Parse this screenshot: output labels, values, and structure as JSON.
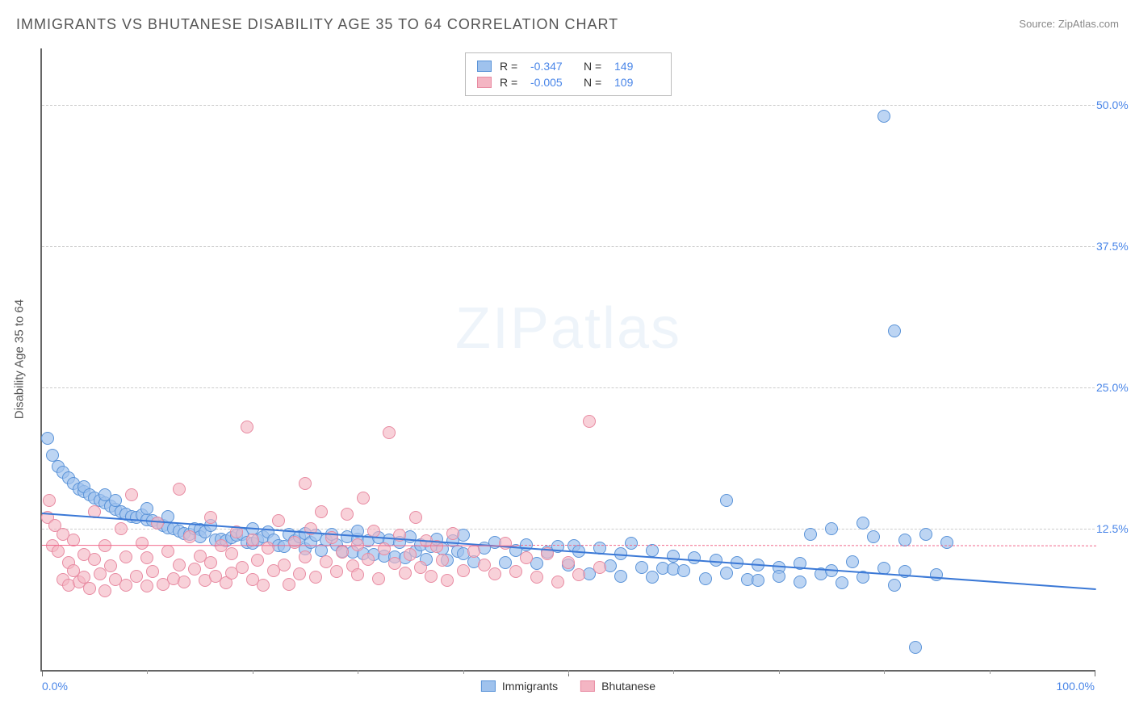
{
  "title": "IMMIGRANTS VS BHUTANESE DISABILITY AGE 35 TO 64 CORRELATION CHART",
  "source_label": "Source:",
  "source_value": "ZipAtlas.com",
  "watermark": "ZIPatlas",
  "chart": {
    "type": "scatter",
    "ylabel": "Disability Age 35 to 64",
    "xlim": [
      0,
      100
    ],
    "ylim": [
      0,
      55
    ],
    "y_ticks": [
      12.5,
      25.0,
      37.5,
      50.0
    ],
    "y_tick_labels": [
      "12.5%",
      "25.0%",
      "37.5%",
      "50.0%"
    ],
    "x_tick_left": "0.0%",
    "x_tick_right": "100.0%",
    "x_minor_ticks": [
      10,
      20,
      30,
      40,
      50,
      60,
      70,
      80,
      90
    ],
    "x_major_ticks": [
      0,
      50,
      100
    ],
    "grid_color": "#cccccc",
    "background_color": "#ffffff",
    "point_radius": 8,
    "series": [
      {
        "name": "Immigrants",
        "fill_color": "#9fc2edB0",
        "stroke_color": "#5a93d8",
        "trend_color": "#3a78d6",
        "trend_width": 2,
        "R": "-0.347",
        "N": "149",
        "trendline": {
          "x1": 0,
          "y1": 14.0,
          "x2": 100,
          "y2": 7.3
        },
        "points": [
          [
            0.5,
            20.5
          ],
          [
            1,
            19
          ],
          [
            1.5,
            18
          ],
          [
            2,
            17.5
          ],
          [
            2.5,
            17
          ],
          [
            3,
            16.5
          ],
          [
            3.5,
            16
          ],
          [
            4,
            15.8
          ],
          [
            4,
            16.2
          ],
          [
            4.5,
            15.5
          ],
          [
            5,
            15.2
          ],
          [
            5.5,
            15
          ],
          [
            6,
            14.8
          ],
          [
            6,
            15.5
          ],
          [
            6.5,
            14.5
          ],
          [
            7,
            14.2
          ],
          [
            7,
            15
          ],
          [
            7.5,
            14
          ],
          [
            8,
            13.8
          ],
          [
            8.5,
            13.6
          ],
          [
            9,
            13.5
          ],
          [
            9.5,
            13.7
          ],
          [
            10,
            13.3
          ],
          [
            10,
            14.3
          ],
          [
            10.5,
            13.2
          ],
          [
            11,
            13
          ],
          [
            11.5,
            12.8
          ],
          [
            12,
            12.6
          ],
          [
            12,
            13.6
          ],
          [
            12.5,
            12.5
          ],
          [
            13,
            12.3
          ],
          [
            13.5,
            12.1
          ],
          [
            14,
            12
          ],
          [
            14.5,
            12.5
          ],
          [
            15,
            12.4
          ],
          [
            15,
            11.8
          ],
          [
            15.5,
            12.2
          ],
          [
            16,
            12.8
          ],
          [
            16.5,
            11.5
          ],
          [
            17,
            11.6
          ],
          [
            17.5,
            11.4
          ],
          [
            18,
            11.7
          ],
          [
            18.5,
            11.9
          ],
          [
            19,
            12
          ],
          [
            19.5,
            11.3
          ],
          [
            20,
            12.5
          ],
          [
            20,
            11.2
          ],
          [
            20.5,
            11.5
          ],
          [
            21,
            11.8
          ],
          [
            21.5,
            12.2
          ],
          [
            22,
            11.5
          ],
          [
            22.5,
            11
          ],
          [
            23,
            10.9
          ],
          [
            23.5,
            12
          ],
          [
            24,
            11.4
          ],
          [
            24.5,
            11.8
          ],
          [
            25,
            12.1
          ],
          [
            25,
            10.7
          ],
          [
            25.5,
            11.3
          ],
          [
            26,
            11.9
          ],
          [
            26.5,
            10.6
          ],
          [
            27,
            11.5
          ],
          [
            27.5,
            12
          ],
          [
            28,
            11.1
          ],
          [
            28.5,
            10.5
          ],
          [
            29,
            11.8
          ],
          [
            29.5,
            10.4
          ],
          [
            30,
            11.6
          ],
          [
            30,
            12.3
          ],
          [
            30.5,
            10.3
          ],
          [
            31,
            11.4
          ],
          [
            31.5,
            10.2
          ],
          [
            32,
            11.7
          ],
          [
            32.5,
            10.1
          ],
          [
            33,
            11.5
          ],
          [
            33.5,
            10
          ],
          [
            34,
            11.3
          ],
          [
            34.5,
            9.9
          ],
          [
            35,
            11.8
          ],
          [
            35.5,
            10.5
          ],
          [
            36,
            11.1
          ],
          [
            36.5,
            9.8
          ],
          [
            37,
            10.9
          ],
          [
            37.5,
            11.6
          ],
          [
            38,
            10.7
          ],
          [
            38.5,
            9.7
          ],
          [
            39,
            11.4
          ],
          [
            39.5,
            10.5
          ],
          [
            40,
            10.3
          ],
          [
            40,
            11.9
          ],
          [
            41,
            9.6
          ],
          [
            42,
            10.8
          ],
          [
            43,
            11.3
          ],
          [
            44,
            9.5
          ],
          [
            45,
            10.6
          ],
          [
            46,
            11.1
          ],
          [
            47,
            9.4
          ],
          [
            48,
            10.4
          ],
          [
            49,
            10.9
          ],
          [
            50,
            9.3
          ],
          [
            50.5,
            11
          ],
          [
            51,
            10.5
          ],
          [
            52,
            8.5
          ],
          [
            53,
            10.8
          ],
          [
            54,
            9.2
          ],
          [
            55,
            8.3
          ],
          [
            55,
            10.3
          ],
          [
            56,
            11.2
          ],
          [
            57,
            9.1
          ],
          [
            58,
            8.2
          ],
          [
            58,
            10.6
          ],
          [
            59,
            9
          ],
          [
            60,
            8.9
          ],
          [
            60,
            10.1
          ],
          [
            61,
            8.8
          ],
          [
            62,
            9.9
          ],
          [
            63,
            8.1
          ],
          [
            64,
            9.7
          ],
          [
            65,
            15
          ],
          [
            65,
            8.6
          ],
          [
            66,
            9.5
          ],
          [
            67,
            8
          ],
          [
            68,
            9.3
          ],
          [
            68,
            7.9
          ],
          [
            70,
            9.1
          ],
          [
            70,
            8.3
          ],
          [
            72,
            7.8
          ],
          [
            72,
            9.4
          ],
          [
            73,
            12
          ],
          [
            74,
            8.5
          ],
          [
            75,
            12.5
          ],
          [
            75,
            8.8
          ],
          [
            76,
            7.7
          ],
          [
            77,
            9.6
          ],
          [
            78,
            13
          ],
          [
            78,
            8.2
          ],
          [
            79,
            11.8
          ],
          [
            80,
            49
          ],
          [
            80,
            9
          ],
          [
            81,
            30
          ],
          [
            81,
            7.5
          ],
          [
            82,
            11.5
          ],
          [
            82,
            8.7
          ],
          [
            83,
            2
          ],
          [
            84,
            12
          ],
          [
            85,
            8.4
          ],
          [
            86,
            11.3
          ]
        ]
      },
      {
        "name": "Bhutanese",
        "fill_color": "#f4b5c3A0",
        "stroke_color": "#e88ba2",
        "trend_color": "#f16a8c",
        "trend_width": 1,
        "R": "-0.005",
        "N": "109",
        "trendline_solid": {
          "x1": 0,
          "y1": 11.2,
          "x2": 45,
          "y2": 11.15
        },
        "trendline_dashed": {
          "x1": 45,
          "y1": 11.15,
          "x2": 100,
          "y2": 11.1
        },
        "points": [
          [
            0.5,
            13.5
          ],
          [
            0.7,
            15
          ],
          [
            1,
            11
          ],
          [
            1.2,
            12.8
          ],
          [
            1.5,
            10.5
          ],
          [
            2,
            8
          ],
          [
            2,
            12
          ],
          [
            2.5,
            9.5
          ],
          [
            2.5,
            7.5
          ],
          [
            3,
            8.8
          ],
          [
            3,
            11.5
          ],
          [
            3.5,
            7.8
          ],
          [
            4,
            10.2
          ],
          [
            4,
            8.2
          ],
          [
            4.5,
            7.2
          ],
          [
            5,
            9.8
          ],
          [
            5,
            14
          ],
          [
            5.5,
            8.5
          ],
          [
            6,
            7
          ],
          [
            6,
            11
          ],
          [
            6.5,
            9.2
          ],
          [
            7,
            8
          ],
          [
            7.5,
            12.5
          ],
          [
            8,
            7.5
          ],
          [
            8,
            10
          ],
          [
            8.5,
            15.5
          ],
          [
            9,
            8.3
          ],
          [
            9.5,
            11.2
          ],
          [
            10,
            7.4
          ],
          [
            10,
            9.9
          ],
          [
            10.5,
            8.7
          ],
          [
            11,
            13
          ],
          [
            11.5,
            7.6
          ],
          [
            12,
            10.5
          ],
          [
            12.5,
            8.1
          ],
          [
            13,
            16
          ],
          [
            13,
            9.3
          ],
          [
            13.5,
            7.8
          ],
          [
            14,
            11.8
          ],
          [
            14.5,
            8.9
          ],
          [
            15,
            10.1
          ],
          [
            15.5,
            7.9
          ],
          [
            16,
            13.5
          ],
          [
            16,
            9.5
          ],
          [
            16.5,
            8.3
          ],
          [
            17,
            11
          ],
          [
            17.5,
            7.7
          ],
          [
            18,
            10.3
          ],
          [
            18,
            8.6
          ],
          [
            18.5,
            12.2
          ],
          [
            19,
            9.1
          ],
          [
            19.5,
            21.5
          ],
          [
            20,
            8
          ],
          [
            20,
            11.5
          ],
          [
            20.5,
            9.7
          ],
          [
            21,
            7.5
          ],
          [
            21.5,
            10.8
          ],
          [
            22,
            8.8
          ],
          [
            22.5,
            13.2
          ],
          [
            23,
            9.3
          ],
          [
            23.5,
            7.6
          ],
          [
            24,
            11.3
          ],
          [
            24.5,
            8.5
          ],
          [
            25,
            10
          ],
          [
            25,
            16.5
          ],
          [
            25.5,
            12.5
          ],
          [
            26,
            8.2
          ],
          [
            26.5,
            14
          ],
          [
            27,
            9.6
          ],
          [
            27.5,
            11.7
          ],
          [
            28,
            8.7
          ],
          [
            28.5,
            10.4
          ],
          [
            29,
            13.8
          ],
          [
            29.5,
            9.2
          ],
          [
            30,
            11.1
          ],
          [
            30,
            8.4
          ],
          [
            30.5,
            15.2
          ],
          [
            31,
            9.8
          ],
          [
            31.5,
            12.3
          ],
          [
            32,
            8.1
          ],
          [
            32.5,
            10.7
          ],
          [
            33,
            21
          ],
          [
            33.5,
            9.4
          ],
          [
            34,
            11.9
          ],
          [
            34.5,
            8.6
          ],
          [
            35,
            10.2
          ],
          [
            35.5,
            13.5
          ],
          [
            36,
            9.1
          ],
          [
            36.5,
            11.4
          ],
          [
            37,
            8.3
          ],
          [
            37.5,
            10.9
          ],
          [
            38,
            9.7
          ],
          [
            38.5,
            7.9
          ],
          [
            39,
            12.1
          ],
          [
            40,
            8.8
          ],
          [
            41,
            10.5
          ],
          [
            42,
            9.3
          ],
          [
            43,
            8.5
          ],
          [
            44,
            11.2
          ],
          [
            45,
            8.7
          ],
          [
            46,
            9.9
          ],
          [
            47,
            8.2
          ],
          [
            48,
            10.3
          ],
          [
            49,
            7.8
          ],
          [
            50,
            9.5
          ],
          [
            51,
            8.4
          ],
          [
            52,
            22
          ],
          [
            53,
            9.1
          ]
        ]
      }
    ]
  },
  "legend_top_rows": [
    {
      "swatch_fill": "#9fc2ed",
      "swatch_stroke": "#5a93d8",
      "R_label": "R =",
      "R": "-0.347",
      "N_label": "N =",
      "N": "149"
    },
    {
      "swatch_fill": "#f4b5c3",
      "swatch_stroke": "#e88ba2",
      "R_label": "R =",
      "R": "-0.005",
      "N_label": "N =",
      "N": "109"
    }
  ],
  "legend_bottom": [
    {
      "swatch_fill": "#9fc2ed",
      "swatch_stroke": "#5a93d8",
      "label": "Immigrants"
    },
    {
      "swatch_fill": "#f4b5c3",
      "swatch_stroke": "#e88ba2",
      "label": "Bhutanese"
    }
  ]
}
